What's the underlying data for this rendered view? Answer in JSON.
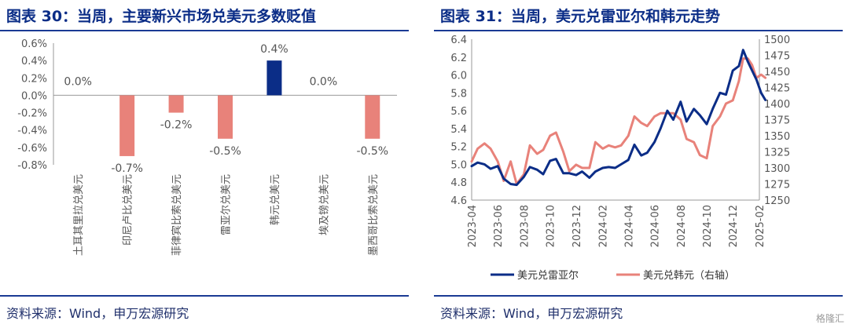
{
  "left": {
    "title": "图表 30：当周，主要新兴市场兑美元多数贬值",
    "source": "资料来源：Wind，申万宏源研究"
  },
  "right": {
    "title": "图表 31：当周，美元兑雷亚尔和韩元走势",
    "source": "资料来源：Wind，申万宏源研究"
  },
  "watermark": "格隆汇",
  "chart_data": [
    {
      "type": "bar",
      "categories": [
        "土耳其里拉兑美元",
        "印尼卢比兑美元",
        "菲律宾比索兑美元",
        "雷亚尔兑美元",
        "韩元兑美元",
        "埃及镑兑美元",
        "墨西哥比索兑美元"
      ],
      "values": [
        0.0,
        -0.7,
        -0.2,
        -0.5,
        0.4,
        0.0,
        -0.5
      ],
      "data_labels": [
        "0.0%",
        "-0.7%",
        "-0.2%",
        "-0.5%",
        "0.4%",
        "0.0%",
        "-0.5%"
      ],
      "ylim": [
        -0.8,
        0.6
      ],
      "yticks": [
        "0.6%",
        "0.4%",
        "0.2%",
        "0.0%",
        "-0.2%",
        "-0.4%",
        "-0.6%",
        "-0.8%"
      ],
      "highlight_index": 4,
      "colors": {
        "negative": "#e8827a",
        "highlight": "#0b2d87",
        "axis": "#9a9a9a"
      }
    },
    {
      "type": "line",
      "x_range": [
        "2023-04",
        "2025-02"
      ],
      "xticks": [
        "2023-04",
        "2023-06",
        "2023-08",
        "2023-10",
        "2023-12",
        "2024-02",
        "2024-04",
        "2024-06",
        "2024-08",
        "2024-10",
        "2024-12",
        "2025-02"
      ],
      "y_left": {
        "ylim": [
          4.6,
          6.4
        ],
        "ticks": [
          "6.4",
          "6.2",
          "6.0",
          "5.8",
          "5.6",
          "5.4",
          "5.2",
          "5.0",
          "4.8",
          "4.6"
        ]
      },
      "y_right": {
        "ylim": [
          1250,
          1500
        ],
        "ticks": [
          "1500",
          "1475",
          "1450",
          "1425",
          "1400",
          "1375",
          "1350",
          "1325",
          "1300",
          "1275",
          "1250"
        ]
      },
      "series": [
        {
          "name": "美元兑雷亚尔",
          "axis": "left",
          "color": "#0b2d87",
          "points": [
            [
              "2023-04-01",
              4.98
            ],
            [
              "2023-04-15",
              5.02
            ],
            [
              "2023-05-01",
              5.0
            ],
            [
              "2023-05-15",
              4.95
            ],
            [
              "2023-06-01",
              4.98
            ],
            [
              "2023-06-15",
              4.84
            ],
            [
              "2023-07-01",
              4.78
            ],
            [
              "2023-07-15",
              4.77
            ],
            [
              "2023-08-01",
              4.86
            ],
            [
              "2023-08-15",
              4.97
            ],
            [
              "2023-09-01",
              4.94
            ],
            [
              "2023-09-15",
              4.89
            ],
            [
              "2023-10-01",
              5.04
            ],
            [
              "2023-10-15",
              5.06
            ],
            [
              "2023-11-01",
              4.9
            ],
            [
              "2023-11-15",
              4.9
            ],
            [
              "2023-12-01",
              4.88
            ],
            [
              "2023-12-15",
              4.92
            ],
            [
              "2024-01-01",
              4.85
            ],
            [
              "2024-01-15",
              4.92
            ],
            [
              "2024-02-01",
              4.96
            ],
            [
              "2024-02-15",
              4.97
            ],
            [
              "2024-03-01",
              4.96
            ],
            [
              "2024-03-15",
              5.0
            ],
            [
              "2024-04-01",
              5.05
            ],
            [
              "2024-04-15",
              5.22
            ],
            [
              "2024-05-01",
              5.1
            ],
            [
              "2024-05-15",
              5.13
            ],
            [
              "2024-06-01",
              5.25
            ],
            [
              "2024-06-15",
              5.4
            ],
            [
              "2024-07-01",
              5.6
            ],
            [
              "2024-07-15",
              5.5
            ],
            [
              "2024-08-01",
              5.7
            ],
            [
              "2024-08-15",
              5.48
            ],
            [
              "2024-09-01",
              5.62
            ],
            [
              "2024-09-15",
              5.55
            ],
            [
              "2024-10-01",
              5.45
            ],
            [
              "2024-10-15",
              5.62
            ],
            [
              "2024-11-01",
              5.8
            ],
            [
              "2024-11-15",
              5.78
            ],
            [
              "2024-12-01",
              6.05
            ],
            [
              "2024-12-15",
              6.1
            ],
            [
              "2024-12-25",
              6.28
            ],
            [
              "2025-01-05",
              6.15
            ],
            [
              "2025-01-15",
              6.05
            ],
            [
              "2025-01-25",
              5.95
            ],
            [
              "2025-02-05",
              5.8
            ],
            [
              "2025-02-15",
              5.72
            ]
          ]
        },
        {
          "name": "美元兑韩元（右轴）",
          "axis": "right",
          "color": "#e8827a",
          "points": [
            [
              "2023-04-01",
              1310
            ],
            [
              "2023-04-15",
              1330
            ],
            [
              "2023-05-01",
              1338
            ],
            [
              "2023-05-15",
              1330
            ],
            [
              "2023-06-01",
              1310
            ],
            [
              "2023-06-15",
              1280
            ],
            [
              "2023-07-01",
              1310
            ],
            [
              "2023-07-15",
              1275
            ],
            [
              "2023-08-01",
              1290
            ],
            [
              "2023-08-15",
              1335
            ],
            [
              "2023-09-01",
              1322
            ],
            [
              "2023-09-15",
              1328
            ],
            [
              "2023-10-01",
              1350
            ],
            [
              "2023-10-15",
              1355
            ],
            [
              "2023-11-01",
              1325
            ],
            [
              "2023-11-15",
              1295
            ],
            [
              "2023-12-01",
              1305
            ],
            [
              "2023-12-15",
              1300
            ],
            [
              "2024-01-01",
              1300
            ],
            [
              "2024-01-15",
              1340
            ],
            [
              "2024-02-01",
              1330
            ],
            [
              "2024-02-15",
              1335
            ],
            [
              "2024-03-01",
              1332
            ],
            [
              "2024-03-15",
              1335
            ],
            [
              "2024-04-01",
              1350
            ],
            [
              "2024-04-15",
              1380
            ],
            [
              "2024-05-01",
              1370
            ],
            [
              "2024-05-15",
              1365
            ],
            [
              "2024-06-01",
              1380
            ],
            [
              "2024-06-15",
              1385
            ],
            [
              "2024-07-01",
              1385
            ],
            [
              "2024-07-15",
              1385
            ],
            [
              "2024-08-01",
              1375
            ],
            [
              "2024-08-15",
              1345
            ],
            [
              "2024-09-01",
              1340
            ],
            [
              "2024-09-15",
              1320
            ],
            [
              "2024-10-01",
              1315
            ],
            [
              "2024-10-15",
              1365
            ],
            [
              "2024-11-01",
              1380
            ],
            [
              "2024-11-15",
              1400
            ],
            [
              "2024-12-01",
              1405
            ],
            [
              "2024-12-15",
              1435
            ],
            [
              "2024-12-25",
              1470
            ],
            [
              "2025-01-05",
              1470
            ],
            [
              "2025-01-15",
              1460
            ],
            [
              "2025-01-25",
              1440
            ],
            [
              "2025-02-05",
              1445
            ],
            [
              "2025-02-15",
              1440
            ]
          ]
        }
      ]
    }
  ]
}
